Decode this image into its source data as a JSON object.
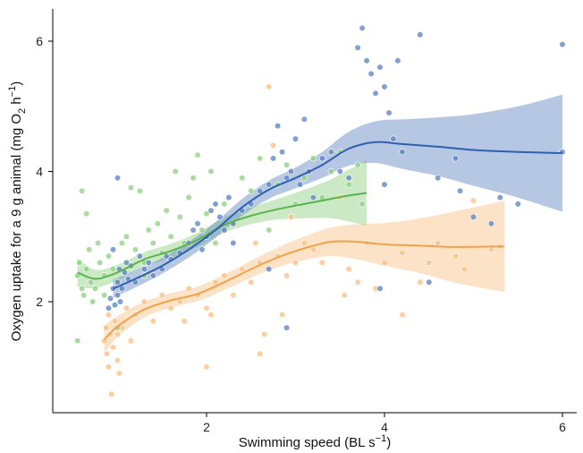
{
  "chart_data": {
    "type": "scatter",
    "xlabel_main": "Swimming speed (BL s",
    "xlabel_sup": "−1",
    "xlabel_end": ")",
    "ylabel_main": "Oxygen uptake for a 9 g animal  (mg O",
    "ylabel_sub": "2",
    "ylabel_mid": " h",
    "ylabel_sup": "−1",
    "ylabel_end": ")",
    "x_ticks": [
      2,
      4,
      6
    ],
    "y_ticks": [
      2,
      4,
      6
    ],
    "xlim": [
      0.3,
      6.3
    ],
    "ylim": [
      0.2,
      6.5
    ],
    "grid": false,
    "series": [
      {
        "color": "#5a82c0",
        "line_color": "#2f5fb0",
        "points": [
          [
            0.9,
            1.9
          ],
          [
            0.92,
            2.05
          ],
          [
            0.95,
            2.2
          ],
          [
            0.97,
            1.95
          ],
          [
            1.0,
            2.1
          ],
          [
            1.0,
            2.3
          ],
          [
            1.02,
            2.5
          ],
          [
            1.03,
            2.0
          ],
          [
            1.05,
            2.2
          ],
          [
            1.08,
            2.45
          ],
          [
            1.1,
            2.6
          ],
          [
            1.0,
            3.9
          ],
          [
            0.95,
            2.8
          ],
          [
            1.12,
            2.35
          ],
          [
            1.15,
            2.55
          ],
          [
            1.2,
            2.3
          ],
          [
            1.25,
            2.7
          ],
          [
            1.3,
            2.5
          ],
          [
            1.35,
            2.6
          ],
          [
            1.4,
            2.4
          ],
          [
            1.5,
            2.5
          ],
          [
            1.55,
            2.7
          ],
          [
            1.6,
            2.65
          ],
          [
            1.7,
            2.75
          ],
          [
            1.8,
            2.9
          ],
          [
            1.85,
            3.1
          ],
          [
            1.9,
            3.2
          ],
          [
            1.95,
            2.8
          ],
          [
            2.0,
            3.0
          ],
          [
            2.05,
            3.4
          ],
          [
            2.1,
            3.5
          ],
          [
            2.15,
            3.3
          ],
          [
            2.2,
            3.1
          ],
          [
            2.25,
            3.6
          ],
          [
            2.3,
            3.2
          ],
          [
            2.4,
            3.4
          ],
          [
            2.5,
            3.5
          ],
          [
            2.6,
            3.7
          ],
          [
            2.7,
            3.8
          ],
          [
            2.75,
            4.2
          ],
          [
            2.8,
            4.7
          ],
          [
            2.85,
            4.3
          ],
          [
            2.9,
            3.9
          ],
          [
            2.9,
            1.6
          ],
          [
            2.95,
            4.0
          ],
          [
            3.0,
            4.5
          ],
          [
            3.05,
            3.8
          ],
          [
            3.1,
            4.8
          ],
          [
            3.15,
            4.0
          ],
          [
            3.2,
            3.6
          ],
          [
            3.3,
            4.2
          ],
          [
            3.4,
            4.3
          ],
          [
            3.5,
            4.0
          ],
          [
            3.6,
            3.9
          ],
          [
            3.7,
            5.9
          ],
          [
            3.75,
            6.2
          ],
          [
            3.8,
            5.7
          ],
          [
            3.85,
            5.5
          ],
          [
            3.9,
            5.2
          ],
          [
            3.95,
            5.6
          ],
          [
            4.0,
            5.3
          ],
          [
            4.05,
            4.9
          ],
          [
            4.1,
            4.5
          ],
          [
            4.15,
            5.7
          ],
          [
            4.0,
            3.8
          ],
          [
            4.2,
            4.3
          ],
          [
            4.4,
            6.1
          ],
          [
            4.5,
            2.3
          ],
          [
            4.6,
            3.9
          ],
          [
            4.8,
            4.2
          ],
          [
            4.85,
            3.7
          ],
          [
            5.0,
            3.3
          ],
          [
            5.2,
            3.2
          ],
          [
            5.3,
            3.6
          ],
          [
            5.5,
            3.5
          ],
          [
            6.0,
            5.95
          ],
          [
            6.0,
            4.3
          ],
          [
            3.95,
            2.2
          ],
          [
            2.7,
            2.5
          ],
          [
            2.3,
            2.9
          ]
        ],
        "fit": [
          [
            0.95,
            2.2
          ],
          [
            1.2,
            2.35
          ],
          [
            1.5,
            2.55
          ],
          [
            1.8,
            2.8
          ],
          [
            2.1,
            3.1
          ],
          [
            2.4,
            3.45
          ],
          [
            2.7,
            3.72
          ],
          [
            3.0,
            3.9
          ],
          [
            3.3,
            4.1
          ],
          [
            3.6,
            4.35
          ],
          [
            3.9,
            4.45
          ],
          [
            4.2,
            4.42
          ],
          [
            4.6,
            4.38
          ],
          [
            5.0,
            4.33
          ],
          [
            5.5,
            4.3
          ],
          [
            6.0,
            4.28
          ]
        ],
        "band": [
          0.14,
          0.13,
          0.12,
          0.12,
          0.12,
          0.13,
          0.14,
          0.16,
          0.2,
          0.26,
          0.32,
          0.38,
          0.45,
          0.55,
          0.7,
          0.9
        ]
      },
      {
        "color": "#8dcf80",
        "line_color": "#5ab350",
        "points": [
          [
            0.55,
            2.4
          ],
          [
            0.57,
            2.6
          ],
          [
            0.6,
            2.2
          ],
          [
            0.6,
            3.7
          ],
          [
            0.62,
            2.1
          ],
          [
            0.65,
            2.5
          ],
          [
            0.65,
            3.35
          ],
          [
            0.68,
            2.8
          ],
          [
            0.7,
            2.3
          ],
          [
            0.72,
            2.0
          ],
          [
            0.75,
            2.2
          ],
          [
            0.78,
            2.9
          ],
          [
            0.8,
            2.6
          ],
          [
            0.85,
            2.4
          ],
          [
            0.85,
            2.1
          ],
          [
            0.9,
            2.7
          ],
          [
            0.95,
            2.5
          ],
          [
            1.0,
            2.3
          ],
          [
            1.05,
            2.9
          ],
          [
            1.1,
            3.0
          ],
          [
            1.15,
            3.75
          ],
          [
            1.2,
            2.8
          ],
          [
            1.25,
            3.7
          ],
          [
            1.3,
            2.6
          ],
          [
            1.35,
            3.1
          ],
          [
            1.4,
            2.9
          ],
          [
            1.45,
            3.2
          ],
          [
            1.5,
            2.75
          ],
          [
            1.55,
            3.4
          ],
          [
            1.6,
            3.0
          ],
          [
            1.65,
            4.0
          ],
          [
            1.7,
            3.3
          ],
          [
            1.75,
            2.9
          ],
          [
            1.8,
            3.6
          ],
          [
            1.85,
            3.9
          ],
          [
            1.9,
            4.25
          ],
          [
            1.95,
            3.1
          ],
          [
            2.0,
            3.35
          ],
          [
            2.05,
            4.0
          ],
          [
            2.1,
            2.9
          ],
          [
            2.2,
            3.5
          ],
          [
            2.3,
            3.2
          ],
          [
            2.4,
            3.9
          ],
          [
            2.5,
            3.7
          ],
          [
            2.6,
            4.2
          ],
          [
            2.7,
            3.1
          ],
          [
            2.8,
            3.8
          ],
          [
            2.9,
            4.1
          ],
          [
            3.0,
            3.5
          ],
          [
            3.1,
            3.9
          ],
          [
            3.2,
            4.2
          ],
          [
            3.3,
            3.6
          ],
          [
            3.4,
            4.0
          ],
          [
            3.5,
            4.3
          ],
          [
            3.6,
            3.8
          ],
          [
            3.7,
            4.1
          ],
          [
            3.75,
            3.5
          ],
          [
            0.55,
            1.4
          ],
          [
            1.0,
            1.6
          ],
          [
            1.3,
            2.4
          ]
        ],
        "fit": [
          [
            0.55,
            2.45
          ],
          [
            0.75,
            2.35
          ],
          [
            1.0,
            2.45
          ],
          [
            1.3,
            2.65
          ],
          [
            1.6,
            2.78
          ],
          [
            1.9,
            2.95
          ],
          [
            2.2,
            3.18
          ],
          [
            2.5,
            3.32
          ],
          [
            2.8,
            3.42
          ],
          [
            3.1,
            3.5
          ],
          [
            3.4,
            3.58
          ],
          [
            3.6,
            3.63
          ],
          [
            3.8,
            3.67
          ]
        ],
        "band": [
          0.22,
          0.14,
          0.12,
          0.11,
          0.11,
          0.11,
          0.12,
          0.13,
          0.16,
          0.22,
          0.3,
          0.4,
          0.5
        ]
      },
      {
        "color": "#f9bf80",
        "line_color": "#f0a24a",
        "points": [
          [
            0.85,
            1.4
          ],
          [
            0.87,
            1.6
          ],
          [
            0.88,
            1.2
          ],
          [
            0.9,
            1.0
          ],
          [
            0.9,
            1.8
          ],
          [
            0.92,
            1.5
          ],
          [
            0.93,
            0.58
          ],
          [
            0.95,
            1.3
          ],
          [
            0.97,
            1.7
          ],
          [
            1.0,
            1.1
          ],
          [
            1.0,
            1.5
          ],
          [
            1.02,
            0.9
          ],
          [
            1.05,
            1.6
          ],
          [
            1.1,
            1.9
          ],
          [
            1.15,
            1.4
          ],
          [
            1.2,
            1.8
          ],
          [
            1.3,
            2.0
          ],
          [
            1.4,
            1.7
          ],
          [
            1.5,
            2.1
          ],
          [
            1.6,
            1.9
          ],
          [
            1.7,
            2.0
          ],
          [
            1.75,
            1.7
          ],
          [
            1.8,
            2.2
          ],
          [
            1.9,
            2.1
          ],
          [
            2.0,
            1.9
          ],
          [
            2.05,
            1.8
          ],
          [
            2.1,
            2.3
          ],
          [
            2.2,
            2.4
          ],
          [
            2.3,
            2.1
          ],
          [
            2.4,
            2.5
          ],
          [
            2.5,
            2.3
          ],
          [
            2.55,
            2.9
          ],
          [
            2.6,
            2.6
          ],
          [
            2.65,
            1.5
          ],
          [
            2.7,
            5.3
          ],
          [
            2.75,
            4.4
          ],
          [
            2.8,
            2.7
          ],
          [
            2.85,
            1.8
          ],
          [
            2.9,
            2.4
          ],
          [
            2.95,
            3.3
          ],
          [
            3.0,
            2.6
          ],
          [
            3.1,
            2.9
          ],
          [
            3.2,
            2.8
          ],
          [
            3.3,
            2.6
          ],
          [
            3.4,
            4.3
          ],
          [
            3.5,
            3.6
          ],
          [
            3.55,
            2.1
          ],
          [
            3.6,
            2.5
          ],
          [
            3.7,
            2.3
          ],
          [
            3.8,
            2.9
          ],
          [
            3.9,
            2.2
          ],
          [
            4.0,
            2.6
          ],
          [
            4.2,
            2.75
          ],
          [
            4.4,
            2.3
          ],
          [
            4.5,
            2.6
          ],
          [
            4.6,
            2.9
          ],
          [
            4.8,
            2.7
          ],
          [
            4.9,
            2.5
          ],
          [
            5.0,
            3.55
          ],
          [
            5.2,
            2.8
          ],
          [
            5.3,
            2.85
          ],
          [
            2.6,
            1.2
          ],
          [
            2.0,
            1.0
          ],
          [
            4.2,
            1.8
          ]
        ],
        "fit": [
          [
            0.85,
            1.42
          ],
          [
            1.0,
            1.62
          ],
          [
            1.3,
            1.88
          ],
          [
            1.6,
            2.02
          ],
          [
            1.9,
            2.12
          ],
          [
            2.2,
            2.3
          ],
          [
            2.5,
            2.5
          ],
          [
            2.8,
            2.68
          ],
          [
            3.1,
            2.82
          ],
          [
            3.4,
            2.92
          ],
          [
            3.7,
            2.92
          ],
          [
            4.0,
            2.88
          ],
          [
            4.4,
            2.86
          ],
          [
            4.8,
            2.84
          ],
          [
            5.35,
            2.85
          ]
        ],
        "band": [
          0.22,
          0.16,
          0.12,
          0.11,
          0.11,
          0.12,
          0.13,
          0.15,
          0.18,
          0.22,
          0.27,
          0.33,
          0.42,
          0.55,
          0.7
        ]
      }
    ]
  }
}
